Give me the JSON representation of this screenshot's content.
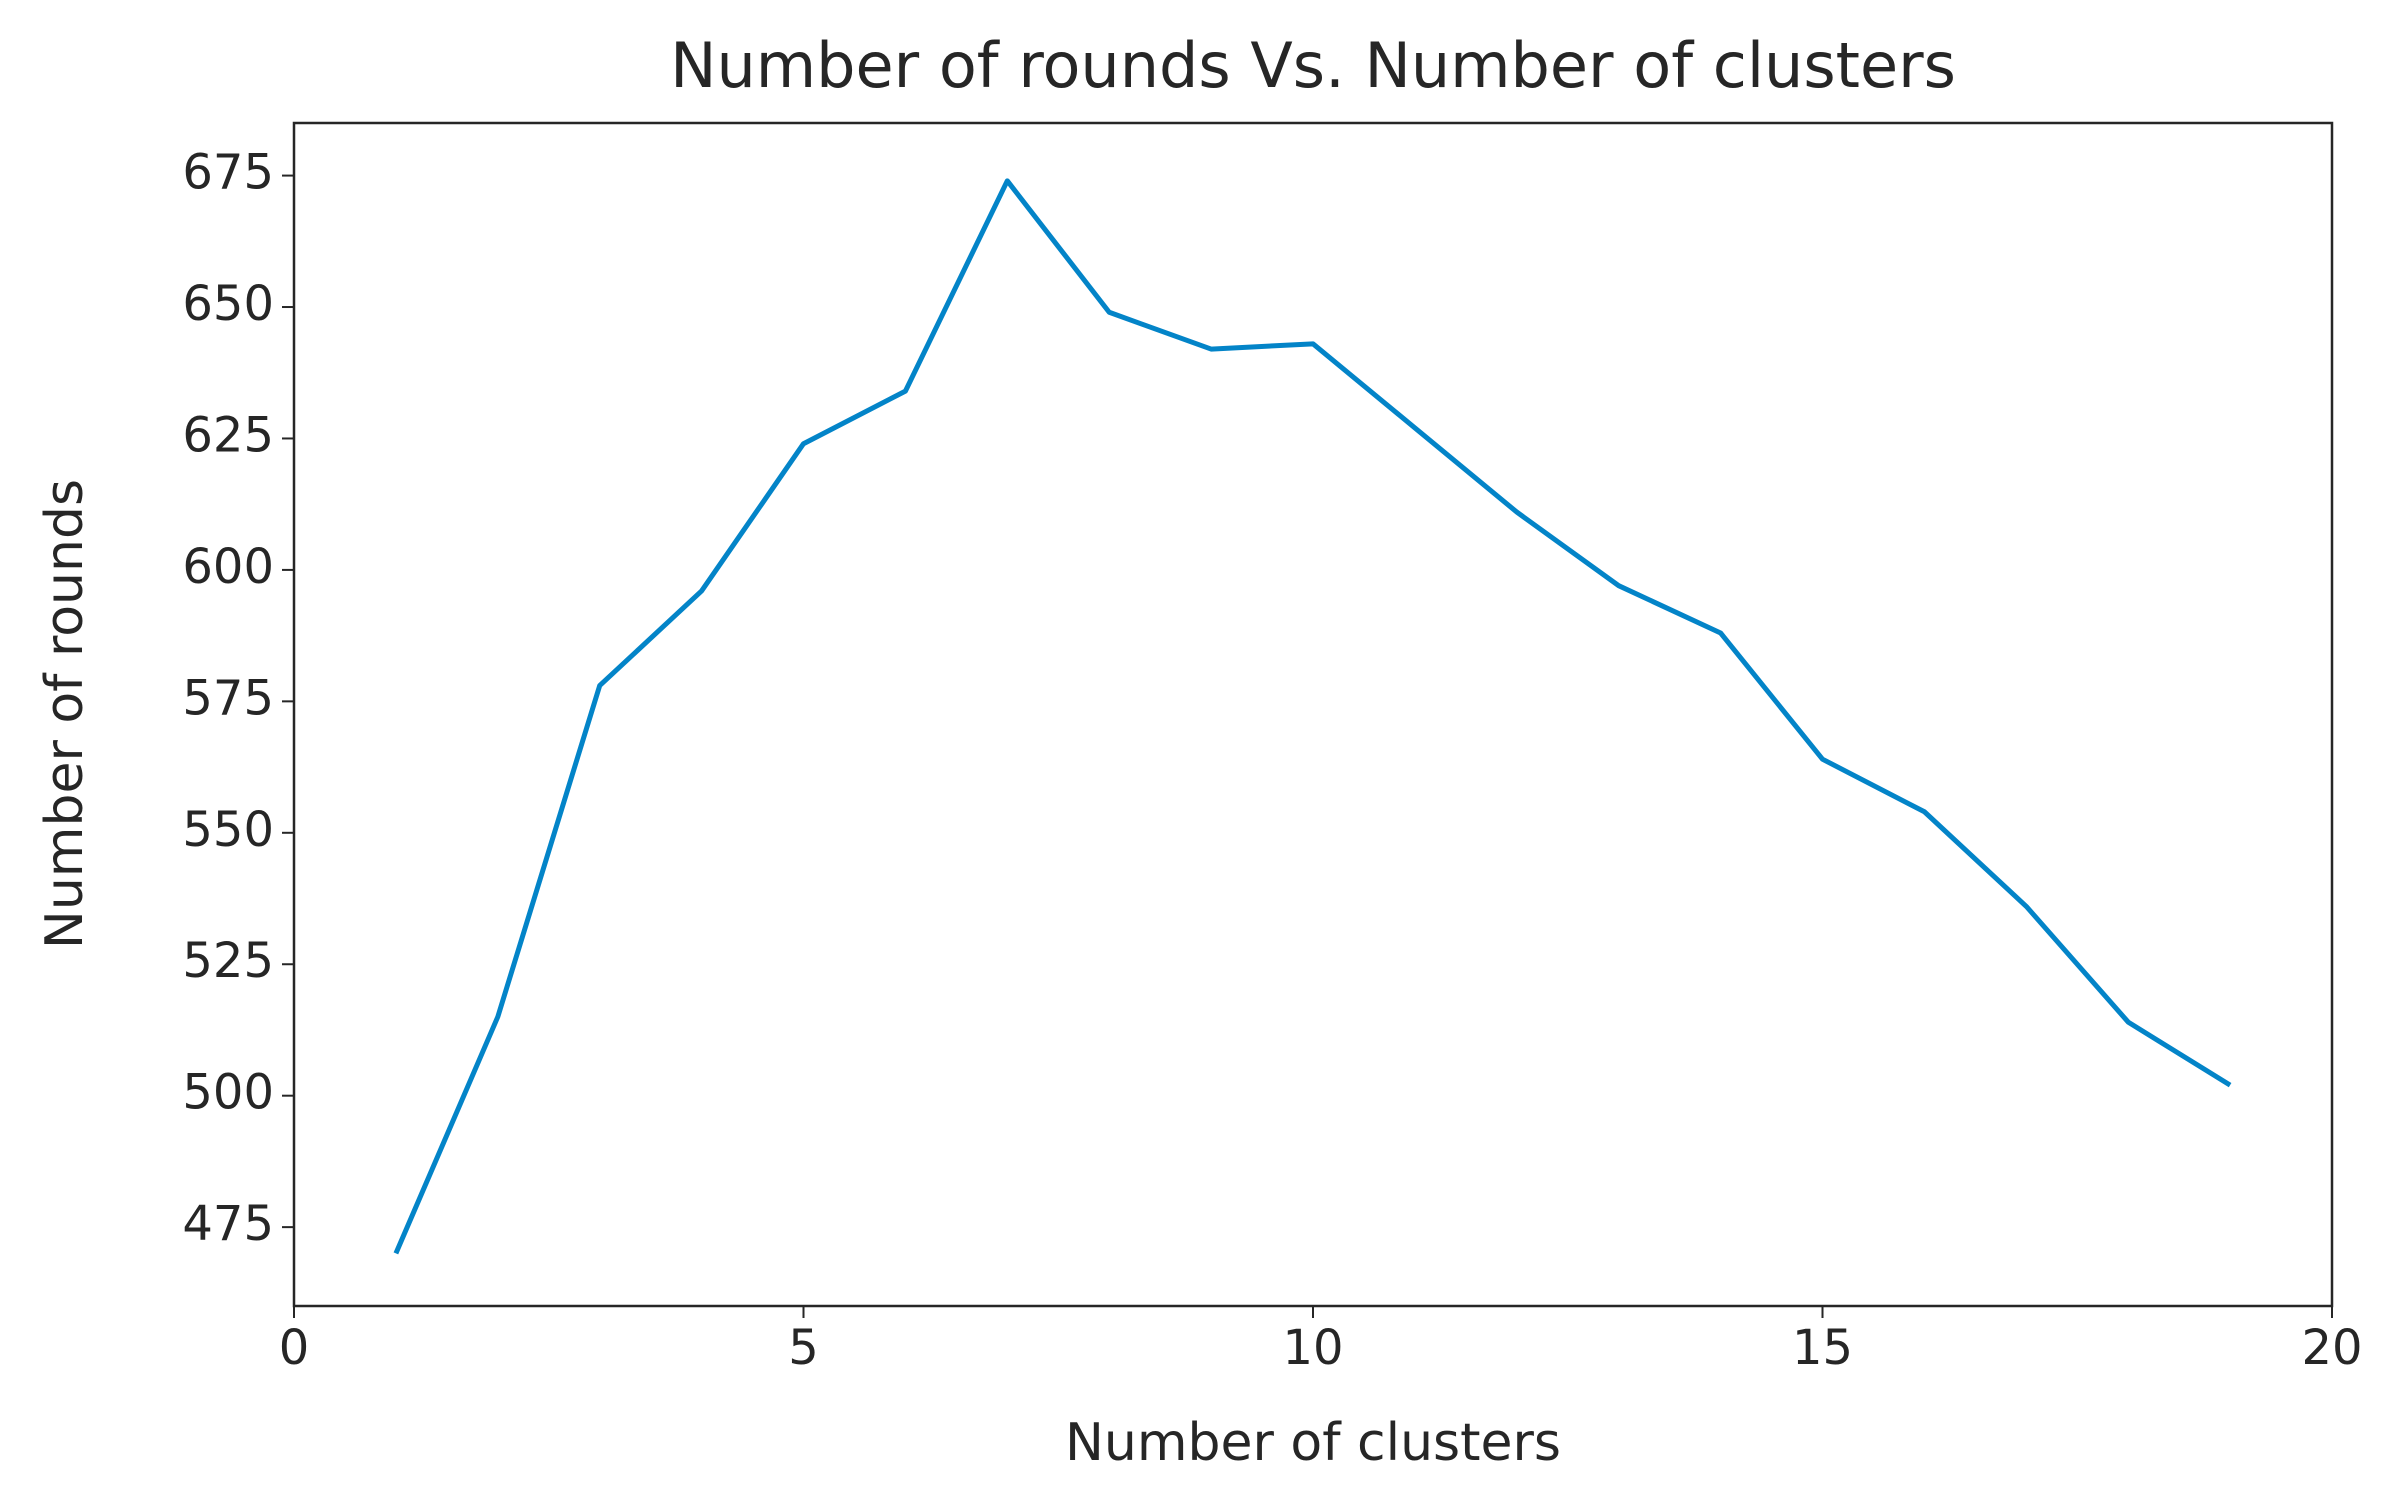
{
  "chart_data": {
    "type": "line",
    "title": "Number of rounds Vs. Number of clusters",
    "x_label": "Number of clusters",
    "y_label": "Number of rounds",
    "x": [
      1,
      2,
      3,
      4,
      5,
      6,
      7,
      8,
      9,
      10,
      11,
      12,
      13,
      14,
      15,
      16,
      17,
      18,
      19
    ],
    "series": [
      {
        "color": "#0384c8",
        "values": [
          470,
          515,
          578,
          596,
          624,
          634,
          674,
          649,
          642,
          643,
          627,
          611,
          597,
          588,
          564,
          554,
          536,
          514,
          502
        ]
      }
    ],
    "xlim": [
      0,
      20
    ],
    "xticks": [
      0,
      5,
      10,
      15,
      20
    ],
    "ylim": [
      460,
      685
    ],
    "yticks": [
      475,
      500,
      525,
      550,
      575,
      600,
      625,
      650,
      675
    ],
    "grid": false
  }
}
